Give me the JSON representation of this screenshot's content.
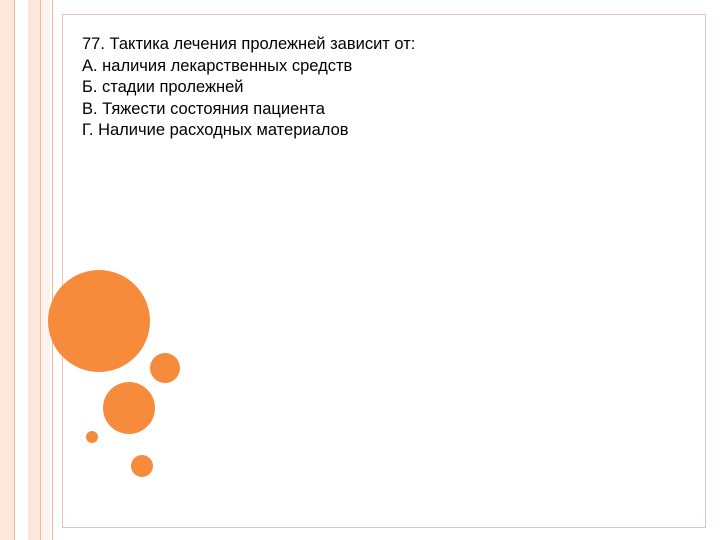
{
  "slide": {
    "question": "77. Тактика лечения пролежней зависит от:",
    "options": [
      "А. наличия лекарственных средств",
      "Б. стадии пролежней",
      "В. Тяжести состояния пациента",
      "Г. Наличие расходных материалов"
    ]
  },
  "colors": {
    "accent": "#f68b3b",
    "stripe": "#fbe7dc",
    "border": "#e6c7b6"
  }
}
